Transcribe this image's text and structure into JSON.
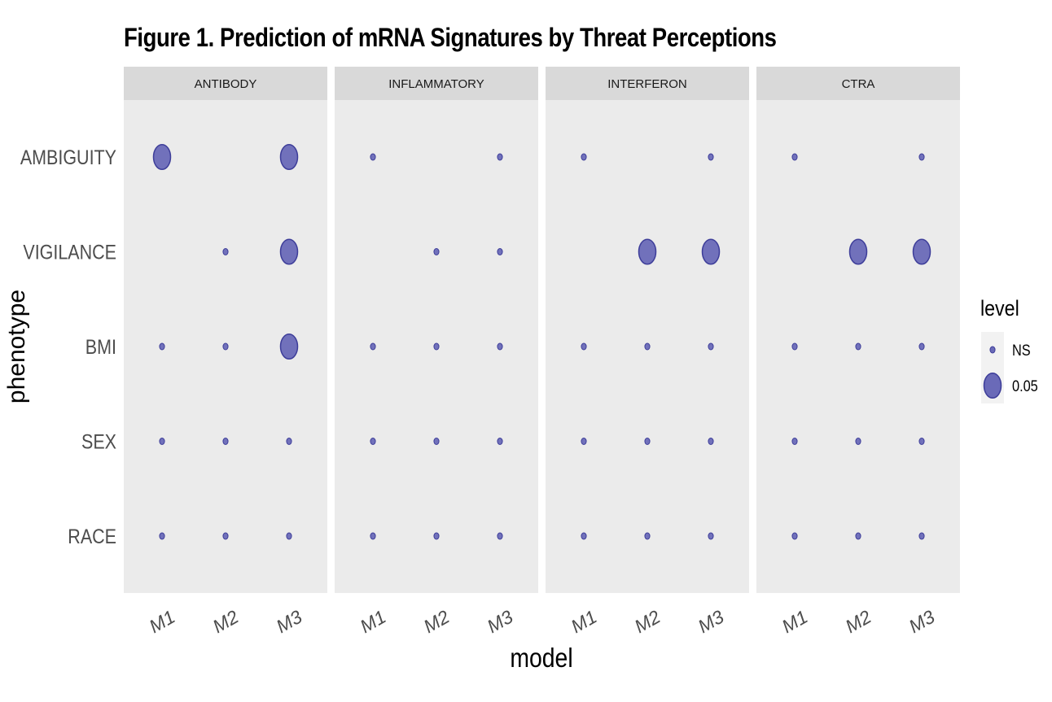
{
  "chart_data": {
    "type": "scatter",
    "title": "Figure 1. Prediction of mRNA Signatures by Threat Perceptions",
    "xlabel": "model",
    "ylabel": "phenotype",
    "x_categories": [
      "M1",
      "M2",
      "M3"
    ],
    "y_categories": [
      "AMBIGUITY",
      "VIGILANCE",
      "BMI",
      "SEX",
      "RACE"
    ],
    "facets": [
      "ANTIBODY",
      "INFLAMMATORY",
      "INTERFERON",
      "CTRA"
    ],
    "legend": {
      "title": "level",
      "placement": "right",
      "entries": [
        {
          "label": "NS",
          "size": "small"
        },
        {
          "label": "0.05",
          "size": "large"
        }
      ]
    },
    "point_color": "#6a6ab8",
    "point_stroke": "#3d3d99",
    "panel_background": "#ebebeb",
    "strip_background": "#d9d9d9",
    "grid": false,
    "points": [
      {
        "facet": "ANTIBODY",
        "x": "M1",
        "y": "AMBIGUITY",
        "level": "0.05"
      },
      {
        "facet": "ANTIBODY",
        "x": "M3",
        "y": "AMBIGUITY",
        "level": "0.05"
      },
      {
        "facet": "ANTIBODY",
        "x": "M2",
        "y": "VIGILANCE",
        "level": "NS"
      },
      {
        "facet": "ANTIBODY",
        "x": "M3",
        "y": "VIGILANCE",
        "level": "0.05"
      },
      {
        "facet": "ANTIBODY",
        "x": "M1",
        "y": "BMI",
        "level": "NS"
      },
      {
        "facet": "ANTIBODY",
        "x": "M2",
        "y": "BMI",
        "level": "NS"
      },
      {
        "facet": "ANTIBODY",
        "x": "M3",
        "y": "BMI",
        "level": "0.05"
      },
      {
        "facet": "ANTIBODY",
        "x": "M1",
        "y": "SEX",
        "level": "NS"
      },
      {
        "facet": "ANTIBODY",
        "x": "M2",
        "y": "SEX",
        "level": "NS"
      },
      {
        "facet": "ANTIBODY",
        "x": "M3",
        "y": "SEX",
        "level": "NS"
      },
      {
        "facet": "ANTIBODY",
        "x": "M1",
        "y": "RACE",
        "level": "NS"
      },
      {
        "facet": "ANTIBODY",
        "x": "M2",
        "y": "RACE",
        "level": "NS"
      },
      {
        "facet": "ANTIBODY",
        "x": "M3",
        "y": "RACE",
        "level": "NS"
      },
      {
        "facet": "INFLAMMATORY",
        "x": "M1",
        "y": "AMBIGUITY",
        "level": "NS"
      },
      {
        "facet": "INFLAMMATORY",
        "x": "M3",
        "y": "AMBIGUITY",
        "level": "NS"
      },
      {
        "facet": "INFLAMMATORY",
        "x": "M2",
        "y": "VIGILANCE",
        "level": "NS"
      },
      {
        "facet": "INFLAMMATORY",
        "x": "M3",
        "y": "VIGILANCE",
        "level": "NS"
      },
      {
        "facet": "INFLAMMATORY",
        "x": "M1",
        "y": "BMI",
        "level": "NS"
      },
      {
        "facet": "INFLAMMATORY",
        "x": "M2",
        "y": "BMI",
        "level": "NS"
      },
      {
        "facet": "INFLAMMATORY",
        "x": "M3",
        "y": "BMI",
        "level": "NS"
      },
      {
        "facet": "INFLAMMATORY",
        "x": "M1",
        "y": "SEX",
        "level": "NS"
      },
      {
        "facet": "INFLAMMATORY",
        "x": "M2",
        "y": "SEX",
        "level": "NS"
      },
      {
        "facet": "INFLAMMATORY",
        "x": "M3",
        "y": "SEX",
        "level": "NS"
      },
      {
        "facet": "INFLAMMATORY",
        "x": "M1",
        "y": "RACE",
        "level": "NS"
      },
      {
        "facet": "INFLAMMATORY",
        "x": "M2",
        "y": "RACE",
        "level": "NS"
      },
      {
        "facet": "INFLAMMATORY",
        "x": "M3",
        "y": "RACE",
        "level": "NS"
      },
      {
        "facet": "INTERFERON",
        "x": "M1",
        "y": "AMBIGUITY",
        "level": "NS"
      },
      {
        "facet": "INTERFERON",
        "x": "M3",
        "y": "AMBIGUITY",
        "level": "NS"
      },
      {
        "facet": "INTERFERON",
        "x": "M2",
        "y": "VIGILANCE",
        "level": "0.05"
      },
      {
        "facet": "INTERFERON",
        "x": "M3",
        "y": "VIGILANCE",
        "level": "0.05"
      },
      {
        "facet": "INTERFERON",
        "x": "M1",
        "y": "BMI",
        "level": "NS"
      },
      {
        "facet": "INTERFERON",
        "x": "M2",
        "y": "BMI",
        "level": "NS"
      },
      {
        "facet": "INTERFERON",
        "x": "M3",
        "y": "BMI",
        "level": "NS"
      },
      {
        "facet": "INTERFERON",
        "x": "M1",
        "y": "SEX",
        "level": "NS"
      },
      {
        "facet": "INTERFERON",
        "x": "M2",
        "y": "SEX",
        "level": "NS"
      },
      {
        "facet": "INTERFERON",
        "x": "M3",
        "y": "SEX",
        "level": "NS"
      },
      {
        "facet": "INTERFERON",
        "x": "M1",
        "y": "RACE",
        "level": "NS"
      },
      {
        "facet": "INTERFERON",
        "x": "M2",
        "y": "RACE",
        "level": "NS"
      },
      {
        "facet": "INTERFERON",
        "x": "M3",
        "y": "RACE",
        "level": "NS"
      },
      {
        "facet": "CTRA",
        "x": "M1",
        "y": "AMBIGUITY",
        "level": "NS"
      },
      {
        "facet": "CTRA",
        "x": "M3",
        "y": "AMBIGUITY",
        "level": "NS"
      },
      {
        "facet": "CTRA",
        "x": "M2",
        "y": "VIGILANCE",
        "level": "0.05"
      },
      {
        "facet": "CTRA",
        "x": "M3",
        "y": "VIGILANCE",
        "level": "0.05"
      },
      {
        "facet": "CTRA",
        "x": "M1",
        "y": "BMI",
        "level": "NS"
      },
      {
        "facet": "CTRA",
        "x": "M2",
        "y": "BMI",
        "level": "NS"
      },
      {
        "facet": "CTRA",
        "x": "M3",
        "y": "BMI",
        "level": "NS"
      },
      {
        "facet": "CTRA",
        "x": "M1",
        "y": "SEX",
        "level": "NS"
      },
      {
        "facet": "CTRA",
        "x": "M2",
        "y": "SEX",
        "level": "NS"
      },
      {
        "facet": "CTRA",
        "x": "M3",
        "y": "SEX",
        "level": "NS"
      },
      {
        "facet": "CTRA",
        "x": "M1",
        "y": "RACE",
        "level": "NS"
      },
      {
        "facet": "CTRA",
        "x": "M2",
        "y": "RACE",
        "level": "NS"
      },
      {
        "facet": "CTRA",
        "x": "M3",
        "y": "RACE",
        "level": "NS"
      }
    ]
  }
}
